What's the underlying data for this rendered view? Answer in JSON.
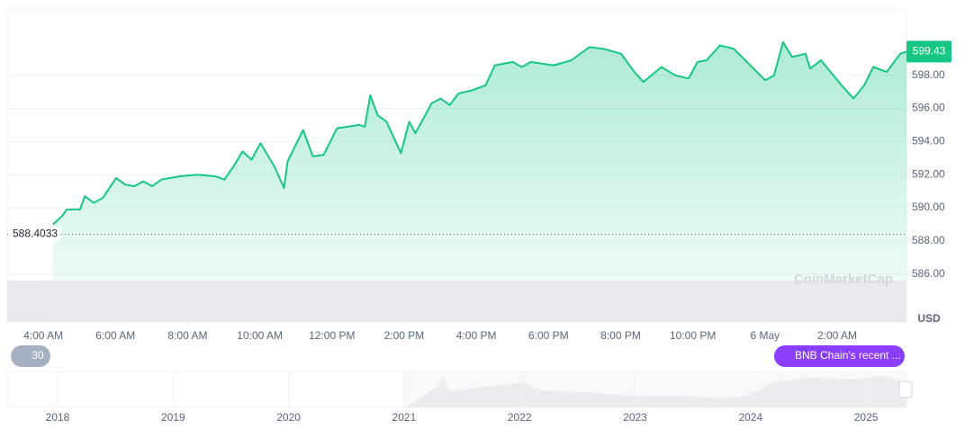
{
  "chart_data": {
    "type": "line",
    "currency": "USD",
    "watermark": "CoinMarketCap",
    "color": "#16c784",
    "x": [
      4.27,
      4.52,
      4.65,
      5.02,
      5.15,
      5.4,
      5.65,
      6.02,
      6.27,
      6.52,
      6.77,
      7.02,
      7.27,
      7.77,
      8.27,
      8.77,
      9.02,
      9.27,
      9.52,
      9.77,
      10.02,
      10.4,
      10.67,
      10.77,
      11.2,
      11.47,
      11.77,
      12.14,
      12.76,
      12.91,
      13.06,
      13.26,
      13.51,
      13.91,
      14.14,
      14.31,
      14.76,
      15.01,
      15.26,
      15.51,
      15.89,
      16.26,
      16.51,
      17.01,
      17.26,
      17.51,
      18.14,
      18.63,
      19.13,
      19.51,
      20.01,
      20.38,
      20.63,
      21.13,
      21.51,
      21.88,
      22.13,
      22.38,
      22.75,
      23.13,
      23.5,
      24.0,
      24.25,
      24.5,
      24.75,
      25.12,
      25.25,
      25.55,
      26.12,
      26.45,
      26.75,
      27.0,
      27.37,
      27.75,
      27.92
    ],
    "values": [
      589.0,
      589.5,
      589.9,
      589.9,
      590.7,
      590.3,
      590.6,
      591.8,
      591.4,
      591.3,
      591.6,
      591.3,
      591.7,
      591.9,
      592.0,
      591.9,
      591.7,
      592.5,
      593.4,
      592.9,
      593.9,
      592.5,
      591.2,
      592.8,
      594.7,
      593.1,
      593.2,
      594.8,
      595.0,
      594.9,
      596.8,
      595.6,
      595.2,
      593.3,
      595.2,
      594.5,
      596.3,
      596.6,
      596.2,
      596.9,
      597.1,
      597.4,
      598.6,
      598.8,
      598.5,
      598.8,
      598.6,
      598.9,
      599.7,
      599.6,
      599.3,
      598.2,
      597.6,
      598.5,
      598.0,
      597.8,
      598.8,
      598.9,
      599.8,
      599.6,
      598.8,
      597.7,
      598.0,
      600.0,
      599.1,
      599.3,
      598.4,
      598.9,
      597.4,
      596.6,
      597.4,
      598.5,
      598.2,
      599.3,
      599.43
    ],
    "last_price": 599.43,
    "reference_line": 588.4033,
    "xlim": [
      3,
      27.92
    ],
    "ylim": [
      583,
      602
    ],
    "xticks": [
      {
        "value": 4,
        "label": "4:00 AM"
      },
      {
        "value": 6,
        "label": "6:00 AM"
      },
      {
        "value": 8,
        "label": "8:00 AM"
      },
      {
        "value": 10,
        "label": "10:00 AM"
      },
      {
        "value": 12,
        "label": "12:00 PM"
      },
      {
        "value": 14,
        "label": "2:00 PM"
      },
      {
        "value": 16,
        "label": "4:00 PM"
      },
      {
        "value": 18,
        "label": "6:00 PM"
      },
      {
        "value": 20,
        "label": "8:00 PM"
      },
      {
        "value": 22,
        "label": "10:00 PM"
      },
      {
        "value": 24,
        "label": "6 May"
      },
      {
        "value": 26,
        "label": "2:00 AM"
      }
    ],
    "yticks": [
      {
        "value": 586,
        "label": "586.00"
      },
      {
        "value": 588,
        "label": "588.00"
      },
      {
        "value": 590,
        "label": "590.00"
      },
      {
        "value": 592,
        "label": "592.00"
      },
      {
        "value": 594,
        "label": "594.00"
      },
      {
        "value": 596,
        "label": "596.00"
      },
      {
        "value": 598,
        "label": "598.00"
      }
    ],
    "grid": true,
    "interval_badge": "30",
    "news_badge": "BNB Chain's recent ...",
    "navigator_years": [
      "2018",
      "2019",
      "2020",
      "2021",
      "2022",
      "2023",
      "2024",
      "2025"
    ]
  }
}
